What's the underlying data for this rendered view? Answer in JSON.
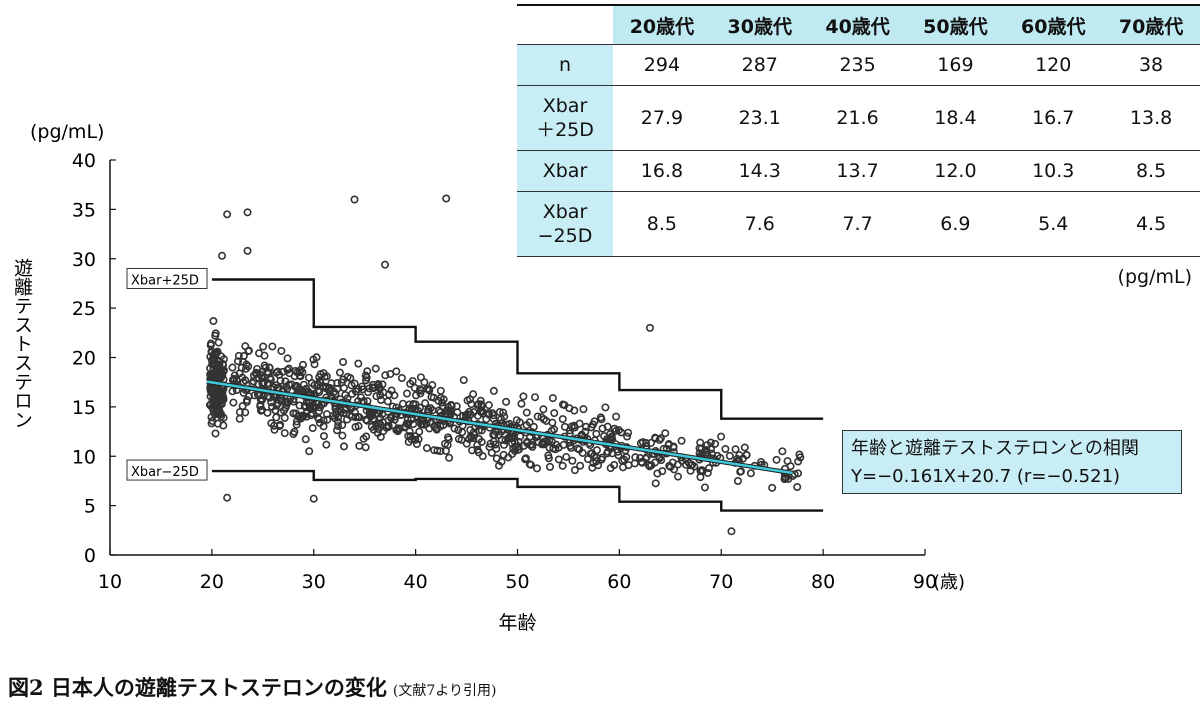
{
  "chart_data": {
    "type": "scatter",
    "xlabel": "年齢",
    "xunit": "(歳)",
    "ylabel": "遊離テストステロン",
    "yunit": "(pg/mL)",
    "xlim": [
      10,
      90
    ],
    "ylim": [
      0,
      40
    ],
    "xticks": [
      "10",
      "20",
      "30",
      "40",
      "50",
      "60",
      "70",
      "80",
      "90"
    ],
    "yticks": [
      "0",
      "5",
      "10",
      "15",
      "20",
      "25",
      "30",
      "35",
      "40"
    ],
    "regression": {
      "slope": -0.161,
      "intercept": 20.7,
      "x_range": [
        19.5,
        77
      ],
      "color": "#3ec8d8"
    },
    "step_lines": {
      "upper": {
        "label": "Xbar+25D",
        "steps": [
          [
            20,
            27.9
          ],
          [
            30,
            23.1
          ],
          [
            40,
            21.6
          ],
          [
            50,
            18.4
          ],
          [
            60,
            16.7
          ],
          [
            70,
            13.8
          ],
          [
            80,
            13.8
          ]
        ]
      },
      "lower": {
        "label": "Xbar−25D",
        "steps": [
          [
            20,
            8.5
          ],
          [
            30,
            7.6
          ],
          [
            40,
            7.7
          ],
          [
            50,
            6.9
          ],
          [
            60,
            5.4
          ],
          [
            70,
            4.5
          ],
          [
            80,
            4.5
          ]
        ]
      }
    },
    "notable_points": [
      [
        21.5,
        34.5
      ],
      [
        23.5,
        34.7
      ],
      [
        34,
        36
      ],
      [
        43,
        36.1
      ],
      [
        37,
        29.4
      ],
      [
        21,
        30.3
      ],
      [
        23.5,
        30.8
      ],
      [
        63,
        23
      ],
      [
        71,
        2.4
      ],
      [
        21.5,
        5.8
      ],
      [
        30,
        5.7
      ],
      [
        75,
        6.8
      ],
      [
        77,
        8.0
      ],
      [
        76,
        10.5
      ]
    ]
  },
  "table": {
    "headers": [
      "20歳代",
      "30歳代",
      "40歳代",
      "50歳代",
      "60歳代",
      "70歳代"
    ],
    "rows": [
      {
        "label": "n",
        "values": [
          "294",
          "287",
          "235",
          "169",
          "120",
          "38"
        ]
      },
      {
        "label": "Xbar\n＋25D",
        "values": [
          "27.9",
          "23.1",
          "21.6",
          "18.4",
          "16.7",
          "13.8"
        ]
      },
      {
        "label": "Xbar",
        "values": [
          "16.8",
          "14.3",
          "13.7",
          "12.0",
          "10.3",
          "8.5"
        ]
      },
      {
        "label": "Xbar\n−25D",
        "values": [
          "8.5",
          "7.6",
          "7.7",
          "6.9",
          "5.4",
          "4.5"
        ]
      }
    ],
    "unit": "(pg/mL)"
  },
  "regression_box": {
    "line1": "年齢と遊離テストステロンとの相関",
    "line2": "Y=−0.161X+20.7 (r=−0.521)"
  },
  "caption": {
    "title": "図2 日本人の遊離テストステロンの変化",
    "cite": "(文献7より引用)"
  }
}
